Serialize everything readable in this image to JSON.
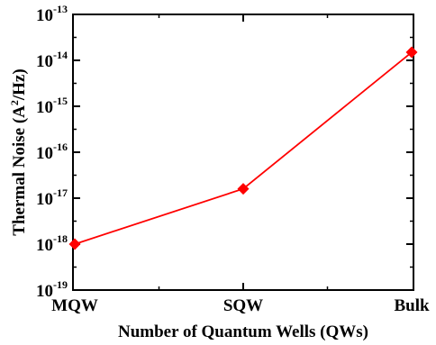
{
  "chart_data": {
    "type": "line",
    "categories": [
      "MQW",
      "SQW",
      "Bulk"
    ],
    "series": [
      {
        "values": [
          1e-18,
          1.6e-17,
          1.5e-14
        ],
        "color": "#ff0000",
        "marker": "diamond"
      }
    ],
    "xlabel": "Number of Quantum Wells (QWs)",
    "ylabel": "Thermal Noise (A²/Hz)",
    "ylabel_parts": {
      "before": "Thermal Noise (A",
      "sup": "2",
      "after": "/Hz)"
    },
    "yscale": "log",
    "ylim": [
      1e-19,
      1e-13
    ],
    "yticks": [
      {
        "base": "10",
        "exp": "-19"
      },
      {
        "base": "10",
        "exp": "-18"
      },
      {
        "base": "10",
        "exp": "-17"
      },
      {
        "base": "10",
        "exp": "-16"
      },
      {
        "base": "10",
        "exp": "-15"
      },
      {
        "base": "10",
        "exp": "-14"
      },
      {
        "base": "10",
        "exp": "-13"
      }
    ],
    "grid": false,
    "legend": "none"
  }
}
